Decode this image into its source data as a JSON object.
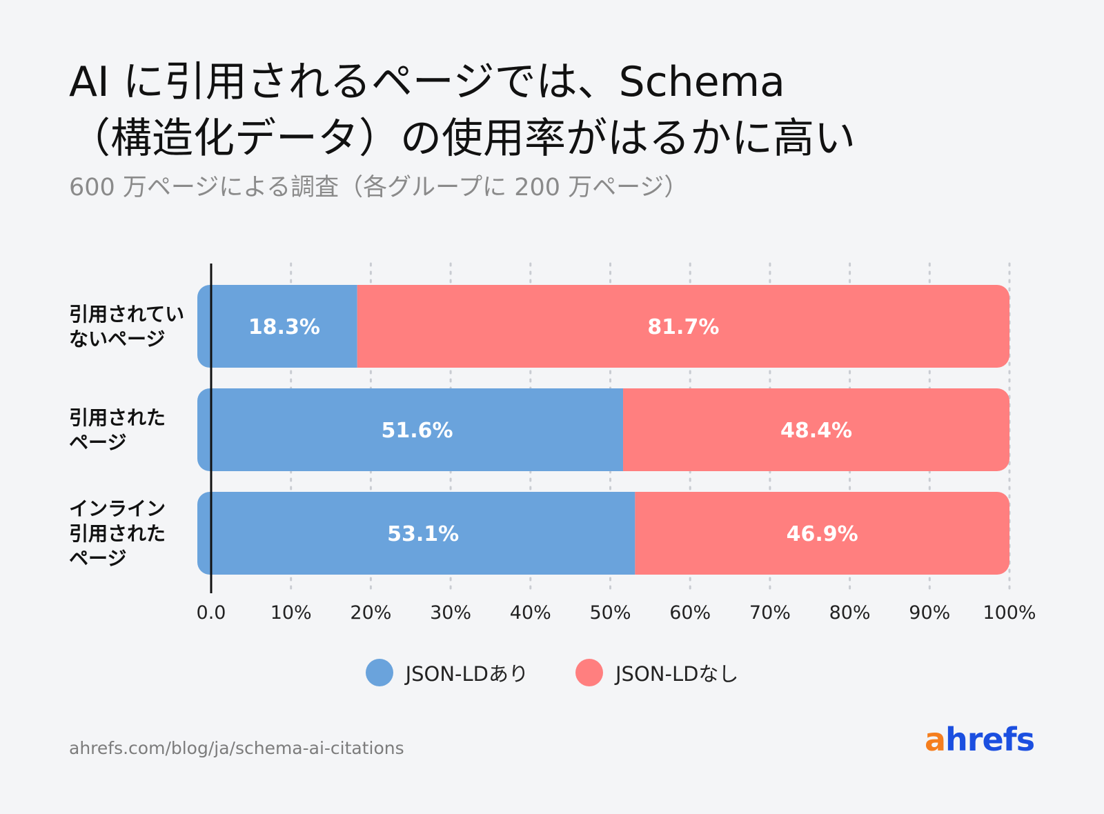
{
  "header": {
    "title_line1": "AI に引用されるページでは、Schema",
    "title_line2": "（構造化データ）の使用率がはるかに高い",
    "subtitle": "600 万ページによる調査（各グループに 200 万ページ）"
  },
  "footer": {
    "source": "ahrefs.com/blog/ja/schema-ai-citations",
    "logo_a": "a",
    "logo_rest": "hrefs"
  },
  "colors": {
    "with": "#6aa3dc",
    "without": "#ff7f7f"
  },
  "chart_data": {
    "type": "bar",
    "orientation": "horizontal",
    "stacked": true,
    "categories": [
      [
        "引用されてい",
        "ないページ"
      ],
      [
        "引用された",
        "ページ"
      ],
      [
        "インライン",
        "引用された",
        "ページ"
      ]
    ],
    "series": [
      {
        "name": "JSON-LDあり",
        "values": [
          18.3,
          51.6,
          53.1
        ],
        "labels": [
          "18.3%",
          "51.6%",
          "53.1%"
        ]
      },
      {
        "name": "JSON-LDなし",
        "values": [
          81.7,
          48.4,
          46.9
        ],
        "labels": [
          "81.7%",
          "48.4%",
          "46.9%"
        ]
      }
    ],
    "xlim": [
      0,
      100
    ],
    "xticks": [
      0,
      10,
      20,
      30,
      40,
      50,
      60,
      70,
      80,
      90,
      100
    ],
    "xtick_labels": [
      "0.0",
      "10%",
      "20%",
      "30%",
      "40%",
      "50%",
      "60%",
      "70%",
      "80%",
      "90%",
      "100%"
    ],
    "grid": "vertical-dotted",
    "legend": "bottom-center"
  }
}
